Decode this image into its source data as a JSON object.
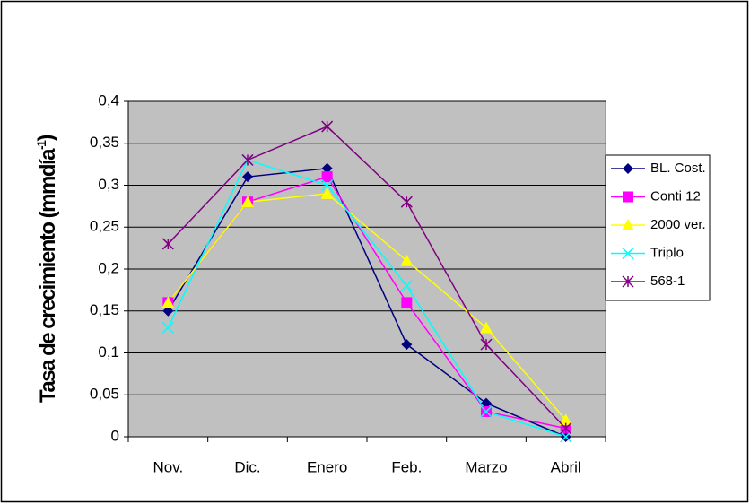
{
  "chart_data": {
    "type": "line",
    "ylabel": {
      "text": "Tasa de crecimiento (mmdía",
      "sup": "-1",
      "end": ")"
    },
    "categories": [
      "Nov.",
      "Dic.",
      "Enero",
      "Feb.",
      "Marzo",
      "Abril"
    ],
    "series": [
      {
        "name": "BL. Cost.",
        "color": "#000080",
        "marker": "diamond",
        "values": [
          0.15,
          0.31,
          0.32,
          0.11,
          0.04,
          0.0
        ]
      },
      {
        "name": "Conti 12",
        "color": "#ff00ff",
        "marker": "square",
        "values": [
          0.16,
          0.28,
          0.31,
          0.16,
          0.03,
          0.01
        ]
      },
      {
        "name": "2000 ver.",
        "color": "#ffff00",
        "marker": "triangle",
        "values": [
          0.16,
          0.28,
          0.29,
          0.21,
          0.13,
          0.02
        ]
      },
      {
        "name": "Triplo",
        "color": "#00ffff",
        "marker": "x",
        "values": [
          0.13,
          0.33,
          0.3,
          0.18,
          0.03,
          0.0
        ]
      },
      {
        "name": "568-1",
        "color": "#800080",
        "marker": "star",
        "values": [
          0.23,
          0.33,
          0.37,
          0.28,
          0.11,
          0.01
        ]
      }
    ],
    "ylim": [
      0,
      0.4
    ],
    "yticks": [
      0,
      {
        "value": 0.05,
        "label": "0,05"
      },
      {
        "value": 0.1,
        "label": "0,1"
      },
      {
        "value": 0.15,
        "label": "0,15"
      },
      {
        "value": 0.2,
        "label": "0,2"
      },
      {
        "value": 0.25,
        "label": "0,25"
      },
      {
        "value": 0.3,
        "label": "0,3"
      },
      {
        "value": 0.35,
        "label": "0,35"
      },
      {
        "value": 0.4,
        "label": "0,4"
      }
    ],
    "grid": true,
    "plot_background": "#c0c0c0",
    "legend": "right"
  }
}
